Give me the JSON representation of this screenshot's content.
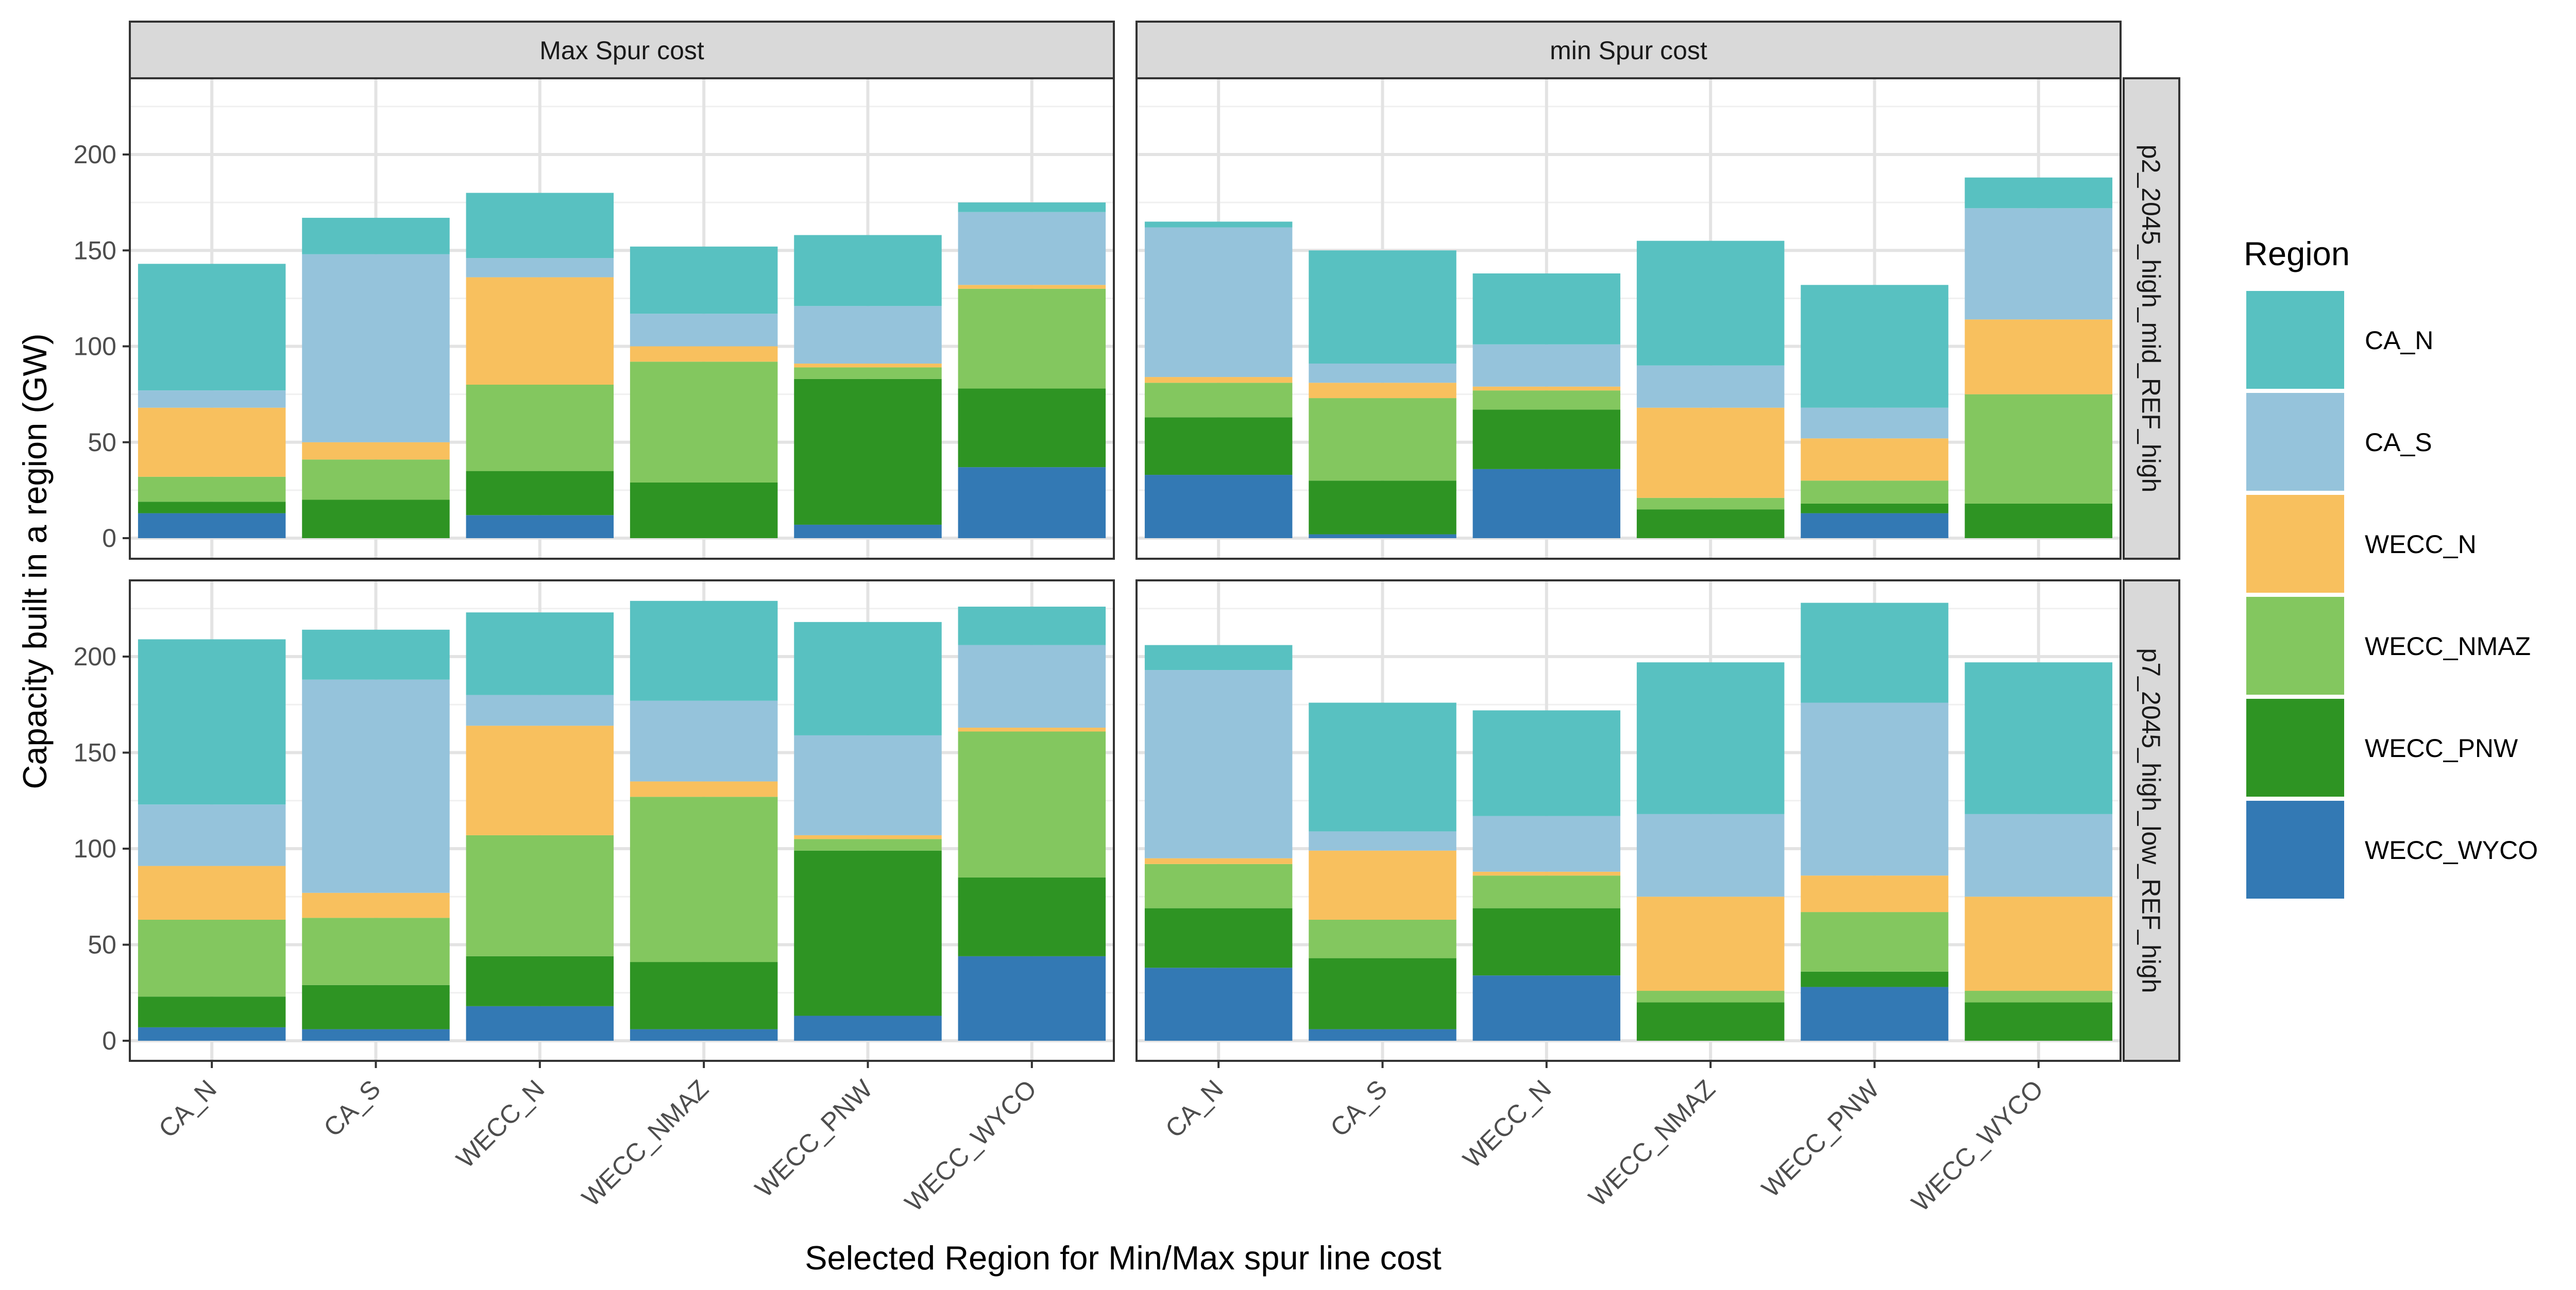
{
  "chart_data": {
    "type": "bar",
    "stacked": true,
    "facet_columns": [
      "Max Spur cost",
      "min Spur cost"
    ],
    "facet_rows": [
      "p2_2045_high_mid_REF_high",
      "p7_2045_high_low_REF_high"
    ],
    "categories": [
      "CA_N",
      "CA_S",
      "WECC_N",
      "WECC_NMAZ",
      "WECC_PNW",
      "WECC_WYCO"
    ],
    "xlabel": "Selected Region for Min/Max spur line cost",
    "ylabel": "Capacity built in a region (GW)",
    "ylim": [
      0,
      240
    ],
    "yticks": [
      0,
      50,
      100,
      150,
      200
    ],
    "grid": true,
    "legend": {
      "title": "Region",
      "position": "right",
      "entries": [
        "CA_N",
        "CA_S",
        "WECC_N",
        "WECC_NMAZ",
        "WECC_PNW",
        "WECC_WYCO"
      ]
    },
    "colors": {
      "CA_N": "#58C1C1",
      "CA_S": "#95C3DB",
      "WECC_N": "#F8C05E",
      "WECC_NMAZ": "#83C75F",
      "WECC_PNW": "#2E9423",
      "WECC_WYCO": "#3379B4"
    },
    "stack_order_bottom_to_top": [
      "WECC_WYCO",
      "WECC_PNW",
      "WECC_NMAZ",
      "WECC_N",
      "CA_S",
      "CA_N"
    ],
    "panels": [
      {
        "col": "Max Spur cost",
        "row": "p2_2045_high_mid_REF_high",
        "series": [
          {
            "name": "WECC_WYCO",
            "values": [
              13,
              0,
              12,
              0,
              7,
              37
            ]
          },
          {
            "name": "WECC_PNW",
            "values": [
              6,
              20,
              23,
              29,
              76,
              41
            ]
          },
          {
            "name": "WECC_NMAZ",
            "values": [
              13,
              21,
              45,
              63,
              6,
              52
            ]
          },
          {
            "name": "WECC_N",
            "values": [
              36,
              9,
              56,
              8,
              2,
              2
            ]
          },
          {
            "name": "CA_S",
            "values": [
              9,
              98,
              10,
              17,
              30,
              38
            ]
          },
          {
            "name": "CA_N",
            "values": [
              66,
              19,
              34,
              35,
              37,
              5
            ]
          }
        ]
      },
      {
        "col": "min Spur cost",
        "row": "p2_2045_high_mid_REF_high",
        "series": [
          {
            "name": "WECC_WYCO",
            "values": [
              33,
              2,
              36,
              0,
              13,
              0
            ]
          },
          {
            "name": "WECC_PNW",
            "values": [
              30,
              28,
              31,
              15,
              5,
              18
            ]
          },
          {
            "name": "WECC_NMAZ",
            "values": [
              18,
              43,
              10,
              6,
              12,
              57
            ]
          },
          {
            "name": "WECC_N",
            "values": [
              3,
              8,
              2,
              47,
              22,
              39
            ]
          },
          {
            "name": "CA_S",
            "values": [
              78,
              10,
              22,
              22,
              16,
              58
            ]
          },
          {
            "name": "CA_N",
            "values": [
              3,
              59,
              37,
              65,
              64,
              16
            ]
          }
        ]
      },
      {
        "col": "Max Spur cost",
        "row": "p7_2045_high_low_REF_high",
        "series": [
          {
            "name": "WECC_WYCO",
            "values": [
              7,
              6,
              18,
              6,
              13,
              44
            ]
          },
          {
            "name": "WECC_PNW",
            "values": [
              16,
              23,
              26,
              35,
              86,
              41
            ]
          },
          {
            "name": "WECC_NMAZ",
            "values": [
              40,
              35,
              63,
              86,
              6,
              76
            ]
          },
          {
            "name": "WECC_N",
            "values": [
              28,
              13,
              57,
              8,
              2,
              2
            ]
          },
          {
            "name": "CA_S",
            "values": [
              32,
              111,
              16,
              42,
              52,
              43
            ]
          },
          {
            "name": "CA_N",
            "values": [
              86,
              26,
              43,
              52,
              59,
              20
            ]
          }
        ]
      },
      {
        "col": "min Spur cost",
        "row": "p7_2045_high_low_REF_high",
        "series": [
          {
            "name": "WECC_WYCO",
            "values": [
              38,
              6,
              34,
              0,
              28,
              0
            ]
          },
          {
            "name": "WECC_PNW",
            "values": [
              31,
              37,
              35,
              20,
              8,
              20
            ]
          },
          {
            "name": "WECC_NMAZ",
            "values": [
              23,
              20,
              17,
              6,
              31,
              6
            ]
          },
          {
            "name": "WECC_N",
            "values": [
              3,
              36,
              2,
              49,
              19,
              49
            ]
          },
          {
            "name": "CA_S",
            "values": [
              98,
              10,
              29,
              43,
              90,
              43
            ]
          },
          {
            "name": "CA_N",
            "values": [
              13,
              67,
              55,
              79,
              52,
              79
            ]
          }
        ]
      }
    ]
  }
}
